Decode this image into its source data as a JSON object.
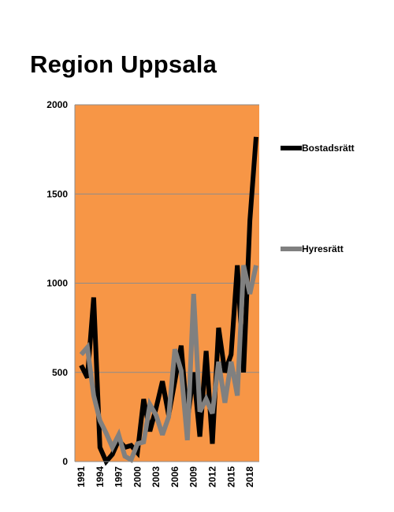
{
  "chart_data": {
    "type": "line",
    "title": "Region Uppsala",
    "xlabel": "",
    "ylabel": "",
    "ylim": [
      0,
      2000
    ],
    "yticks": [
      0,
      500,
      1000,
      1500,
      2000
    ],
    "x": [
      1991,
      1992,
      1993,
      1994,
      1995,
      1996,
      1997,
      1998,
      1999,
      2000,
      2001,
      2002,
      2003,
      2004,
      2005,
      2006,
      2007,
      2008,
      2009,
      2010,
      2011,
      2012,
      2013,
      2014,
      2015,
      2016,
      2017,
      2018,
      2019
    ],
    "xtick_labels": [
      "1991",
      "1994",
      "1997",
      "2000",
      "2003",
      "2006",
      "2009",
      "2012",
      "2015",
      "2018"
    ],
    "grid": true,
    "plot_background": "#F79646",
    "legend_position": "right",
    "series": [
      {
        "name": "Bostadsrätt",
        "color": "#000000",
        "values": [
          540,
          470,
          920,
          80,
          0,
          40,
          120,
          80,
          90,
          50,
          350,
          170,
          300,
          450,
          260,
          450,
          650,
          230,
          500,
          140,
          620,
          100,
          750,
          500,
          600,
          1100,
          500,
          1350,
          1820
        ]
      },
      {
        "name": "Hyresrätt",
        "color": "#808080",
        "values": [
          600,
          640,
          370,
          230,
          160,
          80,
          150,
          30,
          10,
          100,
          110,
          320,
          260,
          150,
          250,
          630,
          510,
          120,
          940,
          280,
          350,
          270,
          560,
          330,
          560,
          370,
          1100,
          940,
          1100
        ]
      }
    ]
  }
}
